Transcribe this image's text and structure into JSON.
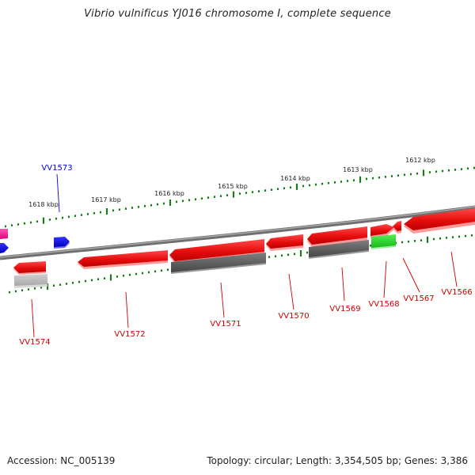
{
  "title": "Vibrio vulnificus YJ016 chromosome I, complete sequence",
  "footer": {
    "accession": "Accession: NC_005139",
    "summary": "Topology: circular; Length: 3,354,505 bp; Genes: 3,386"
  },
  "scale_labels": [
    "1612 kbp",
    "1613 kbp",
    "1614 kbp",
    "1615 kbp",
    "1616 kbp",
    "1617 kbp",
    "1618 kbp"
  ],
  "gene_labels": [
    {
      "name": "VV1573",
      "color": "#0000cc"
    },
    {
      "name": "VV1574",
      "color": "#cc0000"
    },
    {
      "name": "VV1572",
      "color": "#cc0000"
    },
    {
      "name": "VV1571",
      "color": "#cc0000"
    },
    {
      "name": "VV1570",
      "color": "#cc0000"
    },
    {
      "name": "VV1569",
      "color": "#cc0000"
    },
    {
      "name": "VV1568",
      "color": "#cc0000"
    },
    {
      "name": "VV1567",
      "color": "#cc0000"
    },
    {
      "name": "VV1566",
      "color": "#cc0000"
    }
  ],
  "colors": {
    "backbone": "#808080",
    "scale_ticks": "#1a7a1a",
    "gene_red": "#ee1111",
    "gene_dark_gray": "#666666",
    "gene_light_gray": "#b8b8b8",
    "gene_blue": "#0000ee",
    "gene_green": "#22cc22",
    "gene_magenta": "#ff2299"
  }
}
